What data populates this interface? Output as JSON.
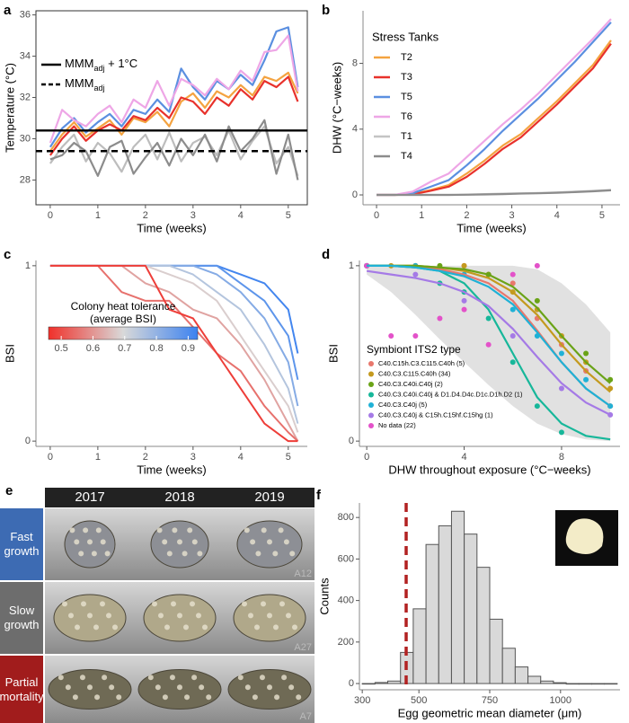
{
  "chart_data": [
    {
      "type": "line",
      "panel_label": "a",
      "x_label": "Time (weeks)",
      "y_label": "Temperature (°C)",
      "xlim": [
        -0.3,
        5.4
      ],
      "xticks": [
        0,
        1,
        2,
        3,
        4,
        5
      ],
      "ylim": [
        26.8,
        36.2
      ],
      "yticks": [
        28,
        30,
        32,
        34,
        36
      ],
      "x": [
        0,
        0.25,
        0.5,
        0.75,
        1,
        1.25,
        1.5,
        1.75,
        2,
        2.25,
        2.5,
        2.75,
        3,
        3.25,
        3.5,
        3.75,
        4,
        4.25,
        4.5,
        4.75,
        5,
        5.2
      ],
      "series": [
        {
          "color": "#bdbdbd",
          "values": [
            28.8,
            29.6,
            30.2,
            28.9,
            29.8,
            29.3,
            28.4,
            29.6,
            30.2,
            29.0,
            30.3,
            28.9,
            29.8,
            30.1,
            29.2,
            30.4,
            29.0,
            29.9,
            30.6,
            28.8,
            29.6,
            28.2
          ]
        },
        {
          "color": "#8c8c8c",
          "values": [
            29.0,
            29.2,
            29.8,
            29.4,
            28.2,
            29.6,
            29.9,
            28.3,
            29.1,
            29.8,
            28.7,
            30.0,
            29.2,
            30.2,
            28.9,
            30.6,
            29.4,
            30.0,
            30.9,
            28.3,
            30.2,
            28.0
          ]
        },
        {
          "color": "#f4a340",
          "values": [
            29.4,
            30.2,
            30.8,
            30.1,
            30.5,
            30.9,
            30.2,
            31.0,
            30.8,
            31.3,
            30.6,
            31.8,
            32.2,
            31.5,
            32.3,
            32.0,
            32.6,
            32.1,
            33.0,
            32.8,
            33.2,
            32.2
          ]
        },
        {
          "color": "#e8312b",
          "values": [
            29.2,
            30.0,
            30.6,
            29.9,
            30.4,
            30.7,
            30.4,
            31.1,
            30.9,
            31.5,
            31.0,
            32.0,
            31.8,
            31.2,
            32.0,
            31.6,
            32.4,
            31.9,
            32.8,
            32.5,
            33.0,
            31.8
          ]
        },
        {
          "color": "#5b8fe0",
          "values": [
            29.6,
            30.5,
            31.0,
            30.3,
            30.8,
            31.2,
            30.6,
            31.4,
            31.2,
            31.9,
            31.3,
            33.4,
            32.5,
            31.9,
            32.8,
            32.4,
            33.1,
            32.6,
            33.8,
            35.2,
            35.4,
            32.5
          ]
        },
        {
          "color": "#eea6e6",
          "values": [
            29.8,
            31.4,
            30.9,
            30.6,
            31.2,
            31.6,
            30.8,
            31.9,
            31.5,
            32.8,
            31.6,
            32.9,
            32.6,
            32.1,
            32.9,
            32.4,
            33.3,
            32.8,
            34.2,
            34.3,
            35.0,
            32.3
          ]
        }
      ],
      "hlines": [
        {
          "value": 30.4,
          "style": "solid",
          "label": [
            "MMM",
            "adj",
            " + 1°C"
          ]
        },
        {
          "value": 29.4,
          "style": "dashed",
          "label": [
            "MMM",
            "adj"
          ]
        }
      ]
    },
    {
      "type": "line",
      "panel_label": "b",
      "x_label": "Time (weeks)",
      "y_label": "DHW (°C−weeks)",
      "legend_title": "Stress Tanks",
      "xlim": [
        -0.3,
        5.4
      ],
      "xticks": [
        0,
        1,
        2,
        3,
        4,
        5
      ],
      "ylim": [
        -0.6,
        11.2
      ],
      "yticks": [
        0,
        4,
        8
      ],
      "x": [
        0,
        0.4,
        0.8,
        1.2,
        1.6,
        2.0,
        2.4,
        2.8,
        3.2,
        3.6,
        4.0,
        4.4,
        4.8,
        5.2
      ],
      "series": [
        {
          "name": "T2",
          "color": "#f4a340",
          "values": [
            0,
            0,
            0.05,
            0.3,
            0.6,
            1.3,
            2.1,
            3.0,
            3.7,
            4.7,
            5.7,
            6.8,
            7.9,
            9.4
          ]
        },
        {
          "name": "T3",
          "color": "#e8312b",
          "values": [
            0,
            0,
            0.03,
            0.25,
            0.5,
            1.1,
            1.9,
            2.8,
            3.5,
            4.5,
            5.5,
            6.6,
            7.7,
            9.2
          ]
        },
        {
          "name": "T5",
          "color": "#5b8fe0",
          "values": [
            0,
            0,
            0.1,
            0.5,
            0.9,
            1.8,
            2.8,
            3.9,
            4.9,
            5.9,
            7.0,
            8.1,
            9.3,
            10.5
          ]
        },
        {
          "name": "T6",
          "color": "#eea6e6",
          "values": [
            0,
            0,
            0.2,
            0.8,
            1.3,
            2.3,
            3.3,
            4.3,
            5.2,
            6.2,
            7.3,
            8.4,
            9.5,
            10.7
          ]
        },
        {
          "name": "T1",
          "color": "#c4c4c4",
          "values": [
            0,
            0,
            0,
            0,
            0,
            0.02,
            0.05,
            0.08,
            0.1,
            0.12,
            0.15,
            0.2,
            0.25,
            0.3
          ]
        },
        {
          "name": "T4",
          "color": "#8c8c8c",
          "values": [
            0,
            0,
            0,
            0,
            0,
            0.01,
            0.03,
            0.05,
            0.08,
            0.1,
            0.13,
            0.17,
            0.22,
            0.28
          ]
        }
      ]
    },
    {
      "type": "line",
      "panel_label": "c",
      "x_label": "Time (weeks)",
      "y_label": "BSI",
      "xlim": [
        -0.3,
        5.4
      ],
      "xticks": [
        0,
        1,
        2,
        3,
        4,
        5
      ],
      "ylim": [
        -0.03,
        1.03
      ],
      "yticks": [
        0,
        1
      ],
      "colorscale": {
        "title": [
          "Colony heat tolerance",
          "(average BSI)"
        ],
        "lim": [
          0.46,
          0.93
        ],
        "ticks": [
          0.5,
          0.6,
          0.7,
          0.8,
          0.9
        ],
        "colors": [
          "#f0302a",
          "#d9d9d9",
          "#3c82f0"
        ]
      },
      "x": [
        0,
        0.5,
        1,
        1.5,
        2,
        2.5,
        3,
        3.5,
        4,
        4.5,
        5,
        5.2
      ],
      "series": [
        {
          "tolerance": 0.92,
          "values": [
            1,
            1,
            1,
            1,
            1,
            1,
            1,
            1,
            0.95,
            0.9,
            0.75,
            0.5
          ]
        },
        {
          "tolerance": 0.88,
          "values": [
            1,
            1,
            1,
            1,
            1,
            1,
            1,
            1,
            0.9,
            0.8,
            0.6,
            0.35
          ]
        },
        {
          "tolerance": 0.82,
          "values": [
            1,
            1,
            1,
            1,
            1,
            1,
            1,
            0.95,
            0.85,
            0.7,
            0.45,
            0.2
          ]
        },
        {
          "tolerance": 0.75,
          "values": [
            1,
            1,
            1,
            1,
            1,
            1,
            0.95,
            0.85,
            0.75,
            0.55,
            0.3,
            0.1
          ]
        },
        {
          "tolerance": 0.68,
          "values": [
            1,
            1,
            1,
            1,
            1,
            0.95,
            0.9,
            0.8,
            0.6,
            0.4,
            0.2,
            0.05
          ]
        },
        {
          "tolerance": 0.62,
          "values": [
            1,
            1,
            1,
            1,
            0.9,
            0.85,
            0.75,
            0.7,
            0.55,
            0.35,
            0.1,
            0
          ]
        },
        {
          "tolerance": 0.55,
          "values": [
            1,
            1,
            1,
            0.85,
            0.8,
            0.8,
            0.65,
            0.5,
            0.4,
            0.2,
            0.05,
            0
          ]
        },
        {
          "tolerance": 0.48,
          "values": [
            1,
            1,
            1,
            1,
            1,
            0.75,
            0.7,
            0.5,
            0.3,
            0.1,
            0,
            0
          ]
        }
      ]
    },
    {
      "type": "scatter",
      "panel_label": "d",
      "x_label": "DHW throughout exposure (°C−weeks)",
      "y_label": "BSI",
      "legend_title": "Symbiont ITS2 type",
      "xlim": [
        -0.3,
        10.4
      ],
      "xticks": [
        0,
        4,
        8
      ],
      "ylim": [
        -0.03,
        1.03
      ],
      "yticks": [
        0,
        1
      ],
      "fit_x": [
        0,
        1,
        2,
        3,
        4,
        5,
        6,
        7,
        8,
        9,
        10
      ],
      "ribbon": {
        "lower": [
          0.95,
          0.85,
          0.72,
          0.58,
          0.45,
          0.32,
          0.2,
          0.1,
          0.04,
          0.01,
          0
        ],
        "upper": [
          1,
          1,
          1,
          1,
          1,
          1,
          1,
          0.98,
          0.9,
          0.78,
          0.62
        ]
      },
      "series": [
        {
          "name": "C40.C15h.C3.C115.C40h (5)",
          "color": "#e8776c",
          "x": [
            0,
            2,
            4,
            5,
            6,
            7,
            8,
            9,
            10
          ],
          "values": [
            1,
            1,
            1,
            0.95,
            0.9,
            0.7,
            0.55,
            0.4,
            0.2
          ],
          "fit": [
            1,
            1,
            0.99,
            0.98,
            0.95,
            0.9,
            0.8,
            0.63,
            0.45,
            0.3,
            0.2
          ]
        },
        {
          "name": "C40.C3.C115.C40h (34)",
          "color": "#c49a1f",
          "x": [
            0,
            1,
            2,
            3,
            4,
            5,
            6,
            7,
            8,
            9,
            10
          ],
          "values": [
            1,
            1,
            1,
            0.98,
            1,
            0.95,
            0.85,
            0.75,
            0.6,
            0.45,
            0.3
          ],
          "fit": [
            1,
            1,
            1,
            0.99,
            0.97,
            0.93,
            0.85,
            0.72,
            0.55,
            0.4,
            0.28
          ]
        },
        {
          "name": "C40.C3.C40i.C40j (2)",
          "color": "#6aa317",
          "x": [
            0,
            3,
            5,
            7,
            9,
            10
          ],
          "values": [
            1,
            1,
            0.95,
            0.8,
            0.5,
            0.35
          ],
          "fit": [
            1,
            1,
            1,
            0.99,
            0.98,
            0.95,
            0.88,
            0.76,
            0.6,
            0.45,
            0.33
          ]
        },
        {
          "name": "C40.C3.C40i.C40j & D1.D4.D4c.D1c.D1h.D2 (1)",
          "color": "#17b79a",
          "x": [
            0,
            3,
            4,
            5,
            6,
            7,
            8
          ],
          "values": [
            1,
            0.9,
            0.85,
            0.7,
            0.45,
            0.2,
            0.05
          ],
          "fit": [
            1,
            1,
            0.99,
            0.97,
            0.9,
            0.75,
            0.5,
            0.25,
            0.1,
            0.03,
            0.01
          ]
        },
        {
          "name": "C40.C3.C40j (5)",
          "color": "#1fb1d6",
          "x": [
            0,
            2,
            4,
            6,
            7,
            8,
            9,
            10
          ],
          "values": [
            1,
            1,
            0.95,
            0.75,
            0.6,
            0.5,
            0.35,
            0.2
          ],
          "fit": [
            1,
            1,
            0.99,
            0.97,
            0.94,
            0.88,
            0.78,
            0.62,
            0.45,
            0.3,
            0.2
          ]
        },
        {
          "name": "C40.C3.C40j & C15h.C15hf.C15hg (1)",
          "color": "#a57ae6",
          "x": [
            0,
            2,
            4,
            6,
            8,
            10
          ],
          "values": [
            1,
            0.95,
            0.8,
            0.6,
            0.3,
            0.15
          ],
          "fit": [
            0.97,
            0.95,
            0.93,
            0.9,
            0.85,
            0.77,
            0.64,
            0.48,
            0.33,
            0.22,
            0.15
          ]
        },
        {
          "name": "No data (22)",
          "color": "#e352c9",
          "x": [
            0,
            1,
            2,
            3,
            4,
            5,
            6,
            7
          ],
          "values": [
            1,
            0.6,
            0.6,
            0.7,
            0.75,
            0.55,
            0.95,
            1
          ]
        }
      ]
    },
    {
      "type": "histogram",
      "panel_label": "f",
      "x_label": "Egg geometric mean diameter (μm)",
      "y_label": "Counts",
      "color": "#d9d9d9",
      "xlim": [
        290,
        1210
      ],
      "xticks": [
        300,
        500,
        750,
        1000
      ],
      "ylim": [
        -30,
        870
      ],
      "yticks": [
        0,
        200,
        400,
        600,
        800
      ],
      "bins": [
        300,
        345,
        390,
        435,
        480,
        525,
        570,
        615,
        660,
        705,
        750,
        795,
        840,
        885,
        930,
        975,
        1020,
        1065,
        1110,
        1155,
        1200
      ],
      "values": [
        0,
        5,
        12,
        150,
        360,
        670,
        760,
        830,
        720,
        560,
        310,
        170,
        80,
        35,
        12,
        4,
        0,
        0,
        0,
        0
      ],
      "vline": {
        "value": 455,
        "color": "#b22222"
      }
    }
  ],
  "photo_panel": {
    "panel_label": "e",
    "columns": [
      "2017",
      "2018",
      "2019"
    ],
    "rows": [
      {
        "label": "Fast growth",
        "colony": "A12",
        "color": "#3d6bb3"
      },
      {
        "label": "Slow growth",
        "colony": "A27",
        "color": "#6d6d6d"
      },
      {
        "label": "Partial mortality",
        "colony": "A7",
        "color": "#a11c1c"
      }
    ]
  }
}
